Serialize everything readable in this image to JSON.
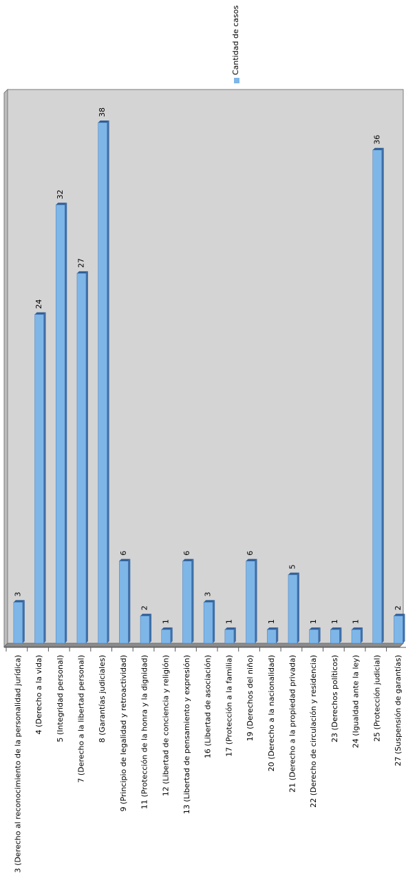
{
  "chart_data": {
    "type": "bar",
    "legend_position": "top-right",
    "grid": false,
    "ylim": [
      0,
      40
    ],
    "series": [
      {
        "name": "Cantidad de casos",
        "color": "#7eb6e8",
        "values": [
          3,
          24,
          32,
          27,
          38,
          6,
          2,
          1,
          6,
          3,
          1,
          6,
          1,
          5,
          1,
          1,
          1,
          36,
          2
        ]
      }
    ],
    "categories": [
      "3 (Derecho al reconocimiento de la personalidad jurídica)",
      "4 (Derecho a la vida)",
      "5 (Integridad personal)",
      "7 (Derecho a la libertad personal)",
      "8 (Garantías judiciales)",
      "9 (Principio de legalidad y retroactividad)",
      "11 (Protección de la honra y la dignidad)",
      "12 (Libertad de conciencia y religión)",
      "13 (Libertad de pensamiento y expresión)",
      "16 (Libertad de asociación)",
      "17 (Protección a la familia)",
      "19 (Derechos del niño)",
      "20 (Derecho a la nacionalidad)",
      "21 (Derecho a la propiedad privada)",
      "22 (Derecho de circulación y residencia)",
      "23 (Derechos políticos)",
      "24 (Igualdad ante la ley)",
      "25 (Protección judicial)",
      "27 (Suspensión de garantías)"
    ]
  }
}
